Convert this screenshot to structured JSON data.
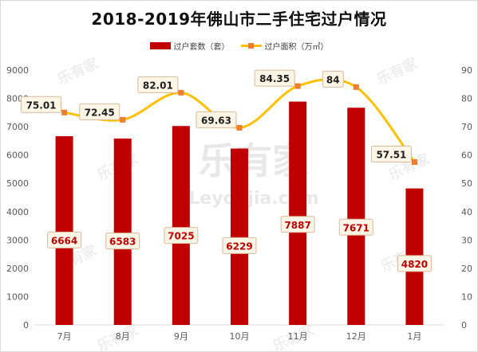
{
  "chart_data": {
    "type": "bar+line",
    "title": "2018-2019年佛山市二手住宅过户情况",
    "categories": [
      "7月",
      "8月",
      "9月",
      "10月",
      "11月",
      "12月",
      "1月"
    ],
    "series": [
      {
        "name": "过户套数（套）",
        "type": "bar",
        "axis": "left",
        "values": [
          6664,
          6583,
          7025,
          6229,
          7887,
          7671,
          4820
        ]
      },
      {
        "name": "过户面积（万㎡）",
        "type": "line",
        "axis": "right",
        "values": [
          75.01,
          72.45,
          82.01,
          69.63,
          84.35,
          84,
          57.51
        ]
      }
    ],
    "y_left": {
      "min": 0,
      "max": 9000,
      "step": 1000
    },
    "y_right": {
      "min": 0,
      "max": 90,
      "step": 10
    },
    "legend_position": "top",
    "grid": false,
    "colors": {
      "bar": "#c00000",
      "line": "#ffc000",
      "marker": "#ed7d31",
      "label_box_bg": "#fdf5e6",
      "label_box_border": "#d9b99b",
      "bar_label_text": "#c00000",
      "line_label_text": "#1f1f1f"
    }
  },
  "watermark": {
    "brand": "乐有家",
    "site": "Leyoujia.com"
  }
}
